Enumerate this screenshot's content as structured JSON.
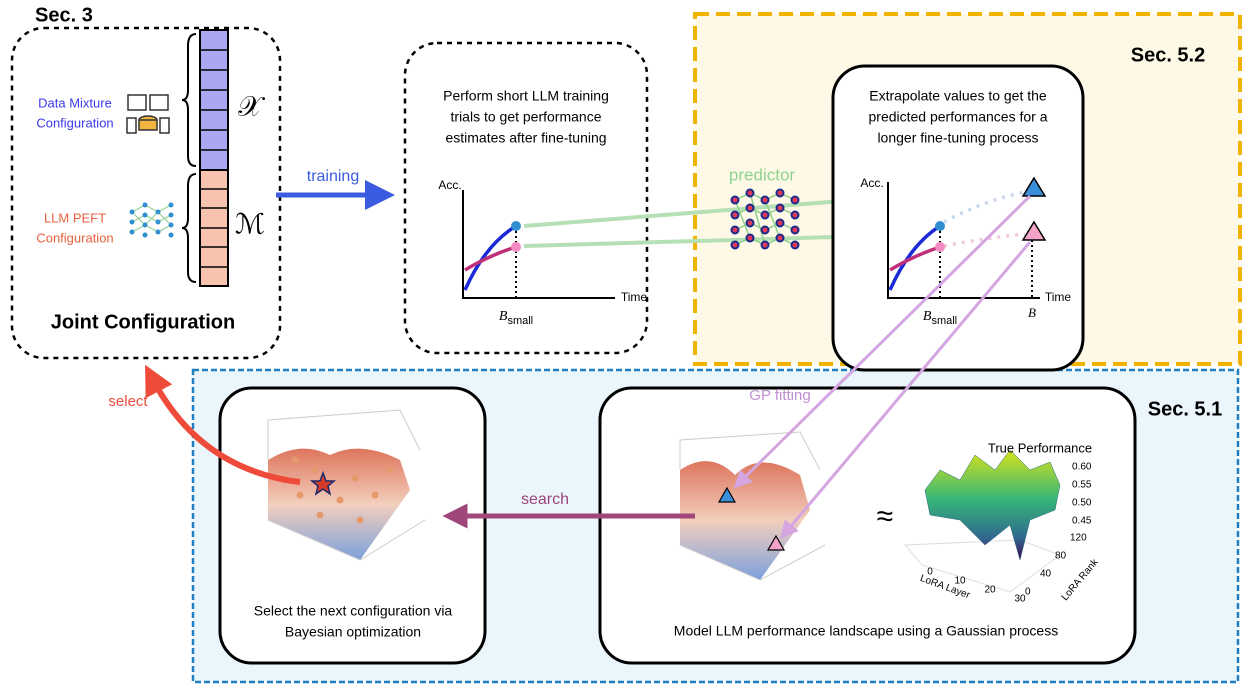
{
  "sec3": {
    "label": "Sec. 3",
    "data_mixture": [
      "Data Mixture",
      "Configuration"
    ],
    "peft": [
      "LLM PEFT",
      "Configuration"
    ],
    "x_symbol": "𝒳",
    "m_symbol": "ℳ",
    "title": "Joint Configuration"
  },
  "arrows": {
    "training": "training",
    "predictor": "predictor",
    "gp_fitting": "GP fitting",
    "select": "select",
    "search": "search"
  },
  "trials": {
    "text": [
      "Perform short LLM training",
      "trials to get performance",
      "estimates after fine-tuning"
    ],
    "y_label": "Acc.",
    "x_label": "Time",
    "b_small": {
      "main": "B",
      "sub": "small"
    }
  },
  "sec52": {
    "label": "Sec. 5.2",
    "text": [
      "Extrapolate values to get the",
      "predicted performances for a",
      "longer fine-tuning process"
    ],
    "y_label": "Acc.",
    "x_label": "Time",
    "b_small": {
      "main": "B",
      "sub": "small"
    },
    "b": "B"
  },
  "sec51": {
    "label": "Sec. 5.1",
    "bo_caption": [
      "Select the next configuration via",
      "Bayesian optimization"
    ],
    "gp_caption": "Model LLM performance landscape using a Gaussian process",
    "approx": "≈",
    "true_perf": {
      "title": "True Performance",
      "z_ticks": [
        "0.60",
        "0.55",
        "0.50",
        "0.45"
      ],
      "y_ticks": [
        "120",
        "80",
        "40",
        "0"
      ],
      "x_ticks": [
        "0",
        "10",
        "20",
        "30"
      ],
      "x_label": "LoRA Layer",
      "y_label": "LoRA Rank"
    }
  }
}
